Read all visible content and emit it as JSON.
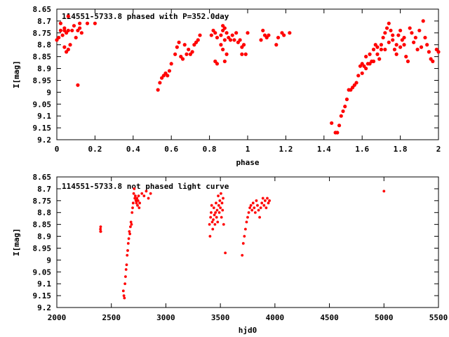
{
  "chart_data": [
    {
      "type": "scatter",
      "title": "114551-5733.8 phased with P=352.0day",
      "xlabel": "phase",
      "ylabel": "I[mag]",
      "xlim": [
        0,
        2
      ],
      "ylim": [
        8.65,
        9.2
      ],
      "y_inverted": true,
      "grid": false,
      "legend": "none",
      "marker_color": "#ff0000",
      "x_ticks": [
        "0",
        "0.2",
        "0.4",
        "0.6",
        "0.8",
        "1",
        "1.2",
        "1.4",
        "1.6",
        "1.8",
        "2"
      ],
      "y_ticks": [
        "8.65",
        "8.7",
        "8.75",
        "8.8",
        "8.85",
        "8.9",
        "8.95",
        "9",
        "9.05",
        "9.1",
        "9.15",
        "9.2"
      ],
      "points": [
        [
          0.0,
          8.78
        ],
        [
          0.01,
          8.77
        ],
        [
          0.02,
          8.74
        ],
        [
          0.02,
          8.71
        ],
        [
          0.03,
          8.76
        ],
        [
          0.04,
          8.74
        ],
        [
          0.04,
          8.73
        ],
        [
          0.05,
          8.75
        ],
        [
          0.06,
          8.74
        ],
        [
          0.04,
          8.81
        ],
        [
          0.05,
          8.83
        ],
        [
          0.06,
          8.82
        ],
        [
          0.07,
          8.8
        ],
        [
          0.06,
          8.68
        ],
        [
          0.08,
          8.74
        ],
        [
          0.09,
          8.72
        ],
        [
          0.1,
          8.77
        ],
        [
          0.11,
          8.74
        ],
        [
          0.12,
          8.73
        ],
        [
          0.13,
          8.75
        ],
        [
          0.12,
          8.71
        ],
        [
          0.16,
          8.71
        ],
        [
          0.2,
          8.71
        ],
        [
          0.11,
          8.97
        ],
        [
          0.53,
          8.99
        ],
        [
          0.54,
          8.96
        ],
        [
          0.55,
          8.94
        ],
        [
          0.56,
          8.93
        ],
        [
          0.57,
          8.92
        ],
        [
          0.58,
          8.93
        ],
        [
          0.59,
          8.91
        ],
        [
          0.6,
          8.88
        ],
        [
          0.62,
          8.84
        ],
        [
          0.63,
          8.81
        ],
        [
          0.64,
          8.79
        ],
        [
          0.65,
          8.85
        ],
        [
          0.66,
          8.86
        ],
        [
          0.67,
          8.8
        ],
        [
          0.68,
          8.84
        ],
        [
          0.69,
          8.82
        ],
        [
          0.7,
          8.84
        ],
        [
          0.71,
          8.83
        ],
        [
          0.72,
          8.8
        ],
        [
          0.73,
          8.79
        ],
        [
          0.74,
          8.78
        ],
        [
          0.75,
          8.76
        ],
        [
          0.81,
          8.76
        ],
        [
          0.82,
          8.74
        ],
        [
          0.83,
          8.75
        ],
        [
          0.84,
          8.77
        ],
        [
          0.83,
          8.87
        ],
        [
          0.84,
          8.88
        ],
        [
          0.86,
          8.76
        ],
        [
          0.87,
          8.74
        ],
        [
          0.87,
          8.72
        ],
        [
          0.88,
          8.73
        ],
        [
          0.89,
          8.75
        ],
        [
          0.9,
          8.77
        ],
        [
          0.86,
          8.8
        ],
        [
          0.87,
          8.82
        ],
        [
          0.88,
          8.78
        ],
        [
          0.89,
          8.84
        ],
        [
          0.88,
          8.87
        ],
        [
          0.91,
          8.78
        ],
        [
          0.92,
          8.76
        ],
        [
          0.93,
          8.78
        ],
        [
          0.94,
          8.75
        ],
        [
          0.95,
          8.79
        ],
        [
          0.96,
          8.78
        ],
        [
          0.97,
          8.81
        ],
        [
          0.98,
          8.8
        ],
        [
          0.97,
          8.84
        ],
        [
          0.99,
          8.84
        ],
        [
          1.0,
          8.75
        ],
        [
          1.08,
          8.74
        ],
        [
          1.09,
          8.76
        ],
        [
          1.1,
          8.77
        ],
        [
          1.11,
          8.76
        ],
        [
          1.07,
          8.78
        ],
        [
          1.16,
          8.77
        ],
        [
          1.18,
          8.75
        ],
        [
          1.19,
          8.76
        ],
        [
          1.15,
          8.8
        ],
        [
          1.22,
          8.75
        ],
        [
          1.44,
          9.13
        ],
        [
          1.46,
          9.17
        ],
        [
          1.47,
          9.17
        ],
        [
          1.48,
          9.14
        ],
        [
          1.49,
          9.1
        ],
        [
          1.5,
          9.08
        ],
        [
          1.51,
          9.06
        ],
        [
          1.52,
          9.03
        ],
        [
          1.53,
          8.99
        ],
        [
          1.54,
          8.99
        ],
        [
          1.55,
          8.98
        ],
        [
          1.56,
          8.97
        ],
        [
          1.57,
          8.96
        ],
        [
          1.58,
          8.93
        ],
        [
          1.59,
          8.89
        ],
        [
          1.6,
          8.88
        ],
        [
          1.61,
          8.89
        ],
        [
          1.62,
          8.9
        ],
        [
          1.63,
          8.88
        ],
        [
          1.64,
          8.84
        ],
        [
          1.65,
          8.87
        ],
        [
          1.66,
          8.82
        ],
        [
          1.67,
          8.8
        ],
        [
          1.68,
          8.81
        ],
        [
          1.69,
          8.86
        ],
        [
          1.7,
          8.8
        ],
        [
          1.71,
          8.77
        ],
        [
          1.72,
          8.75
        ],
        [
          1.73,
          8.73
        ],
        [
          1.74,
          8.71
        ],
        [
          1.75,
          8.74
        ],
        [
          1.76,
          8.78
        ],
        [
          1.77,
          8.82
        ],
        [
          1.78,
          8.8
        ],
        [
          1.79,
          8.76
        ],
        [
          1.8,
          8.74
        ],
        [
          1.81,
          8.78
        ],
        [
          1.82,
          8.8
        ],
        [
          1.83,
          8.85
        ],
        [
          1.84,
          8.87
        ],
        [
          1.85,
          8.73
        ],
        [
          1.86,
          8.75
        ],
        [
          1.87,
          8.79
        ],
        [
          1.88,
          8.77
        ],
        [
          1.89,
          8.82
        ],
        [
          1.9,
          8.74
        ],
        [
          1.91,
          8.81
        ],
        [
          1.92,
          8.7
        ],
        [
          1.93,
          8.77
        ],
        [
          1.94,
          8.8
        ],
        [
          1.95,
          8.83
        ],
        [
          1.96,
          8.86
        ],
        [
          1.97,
          8.87
        ],
        [
          1.99,
          8.82
        ],
        [
          2.0,
          8.83
        ],
        [
          1.6,
          8.92
        ],
        [
          1.62,
          8.85
        ],
        [
          1.64,
          8.88
        ],
        [
          1.66,
          8.87
        ],
        [
          1.68,
          8.84
        ],
        [
          1.7,
          8.82
        ],
        [
          1.72,
          8.82
        ],
        [
          1.74,
          8.79
        ],
        [
          1.76,
          8.76
        ],
        [
          1.78,
          8.84
        ],
        [
          1.8,
          8.81
        ],
        [
          1.82,
          8.77
        ]
      ]
    },
    {
      "type": "scatter",
      "title": "114551-5733.8 not phased light curve",
      "xlabel": "hjd0",
      "ylabel": "I[mag]",
      "xlim": [
        2000,
        5500
      ],
      "ylim": [
        8.65,
        9.2
      ],
      "y_inverted": true,
      "grid": false,
      "legend": "none",
      "marker_color": "#ff0000",
      "x_ticks": [
        "2000",
        "2500",
        "3000",
        "3500",
        "4000",
        "4500",
        "5000",
        "5500"
      ],
      "y_ticks": [
        "8.65",
        "8.7",
        "8.75",
        "8.8",
        "8.85",
        "8.9",
        "8.95",
        "9",
        "9.05",
        "9.1",
        "9.15",
        "9.2"
      ],
      "points": [
        [
          2400,
          8.87
        ],
        [
          2401,
          8.88
        ],
        [
          2402,
          8.86
        ],
        [
          2403,
          8.88
        ],
        [
          2610,
          9.13
        ],
        [
          2615,
          9.15
        ],
        [
          2620,
          9.16
        ],
        [
          2625,
          9.1
        ],
        [
          2630,
          9.07
        ],
        [
          2635,
          9.04
        ],
        [
          2640,
          9.02
        ],
        [
          2645,
          8.98
        ],
        [
          2650,
          8.96
        ],
        [
          2655,
          8.93
        ],
        [
          2660,
          8.91
        ],
        [
          2665,
          8.88
        ],
        [
          2670,
          8.89
        ],
        [
          2675,
          8.86
        ],
        [
          2680,
          8.84
        ],
        [
          2685,
          8.85
        ],
        [
          2690,
          8.8
        ],
        [
          2695,
          8.78
        ],
        [
          2700,
          8.76
        ],
        [
          2705,
          8.72
        ],
        [
          2710,
          8.7
        ],
        [
          2715,
          8.74
        ],
        [
          2720,
          8.73
        ],
        [
          2725,
          8.75
        ],
        [
          2730,
          8.76
        ],
        [
          2735,
          8.74
        ],
        [
          2740,
          8.77
        ],
        [
          2745,
          8.75
        ],
        [
          2750,
          8.73
        ],
        [
          2755,
          8.78
        ],
        [
          2760,
          8.76
        ],
        [
          2780,
          8.72
        ],
        [
          2800,
          8.73
        ],
        [
          2820,
          8.71
        ],
        [
          2840,
          8.74
        ],
        [
          2860,
          8.72
        ],
        [
          3400,
          8.85
        ],
        [
          3405,
          8.9
        ],
        [
          3410,
          8.82
        ],
        [
          3415,
          8.8
        ],
        [
          3420,
          8.77
        ],
        [
          3425,
          8.84
        ],
        [
          3430,
          8.87
        ],
        [
          3435,
          8.83
        ],
        [
          3440,
          8.78
        ],
        [
          3445,
          8.81
        ],
        [
          3450,
          8.85
        ],
        [
          3455,
          8.8
        ],
        [
          3460,
          8.76
        ],
        [
          3465,
          8.82
        ],
        [
          3470,
          8.79
        ],
        [
          3475,
          8.84
        ],
        [
          3480,
          8.73
        ],
        [
          3485,
          8.77
        ],
        [
          3490,
          8.8
        ],
        [
          3495,
          8.75
        ],
        [
          3500,
          8.78
        ],
        [
          3505,
          8.72
        ],
        [
          3510,
          8.82
        ],
        [
          3515,
          8.76
        ],
        [
          3520,
          8.79
        ],
        [
          3525,
          8.74
        ],
        [
          3530,
          8.85
        ],
        [
          3545,
          8.97
        ],
        [
          3700,
          8.98
        ],
        [
          3710,
          8.93
        ],
        [
          3720,
          8.9
        ],
        [
          3730,
          8.87
        ],
        [
          3740,
          8.84
        ],
        [
          3750,
          8.82
        ],
        [
          3760,
          8.8
        ],
        [
          3770,
          8.78
        ],
        [
          3780,
          8.77
        ],
        [
          3790,
          8.79
        ],
        [
          3800,
          8.76
        ],
        [
          3810,
          8.78
        ],
        [
          3820,
          8.8
        ],
        [
          3830,
          8.75
        ],
        [
          3840,
          8.77
        ],
        [
          3850,
          8.79
        ],
        [
          3860,
          8.82
        ],
        [
          3870,
          8.78
        ],
        [
          3880,
          8.76
        ],
        [
          3890,
          8.74
        ],
        [
          3900,
          8.77
        ],
        [
          3910,
          8.75
        ],
        [
          3920,
          8.78
        ],
        [
          3930,
          8.74
        ],
        [
          3940,
          8.76
        ],
        [
          3950,
          8.75
        ],
        [
          5000,
          8.71
        ]
      ]
    }
  ]
}
